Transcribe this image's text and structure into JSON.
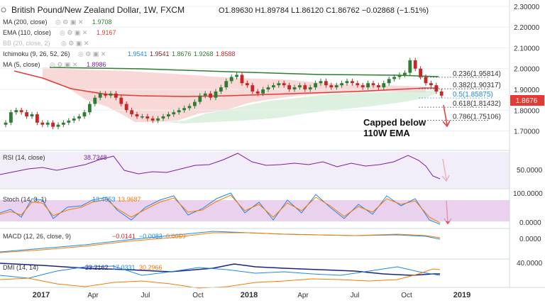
{
  "header": {
    "title": "British Pound/New Zealand Dollar, 1W, FXCM",
    "ohlc": "O1.89630  H1.89784  L1.86120  C1.86762  −0.02868 (−1.51%)"
  },
  "indicators": {
    "ma200": {
      "label": "MA (200, close)",
      "value": "1.9708",
      "color": "#2e7d32"
    },
    "ema110": {
      "label": "EMA (110, close)",
      "value": "1.9167",
      "color": "#e53935"
    },
    "bb": {
      "label": "BB (20, close, 2)",
      "value": ""
    },
    "ichimoku": {
      "label": "Ichimoku (9, 26, 52, 26)",
      "values": [
        "1.9541",
        "1.9541",
        "1.8676",
        "1.9268",
        "1.8588"
      ],
      "colors": [
        "#1e88e5",
        "#8e1b1b",
        "#2e7d32",
        "#2e7d32",
        "#c62828"
      ]
    },
    "ma5": {
      "label": "MA (5, close)",
      "value": "1.8986",
      "color": "#7b1fa2"
    }
  },
  "fib": {
    "levels": [
      {
        "label": "0.236(1.95814)",
        "price": 1.95814,
        "color": "#333333"
      },
      {
        "label": "0.382(1.90317)",
        "price": 1.90317,
        "color": "#333333"
      },
      {
        "label": "0.5(1.85875)",
        "price": 1.85875,
        "color": "#1e88e5"
      },
      {
        "label": "0.618(1.81432)",
        "price": 1.81432,
        "color": "#333333"
      },
      {
        "label": "0.786(1.75106)",
        "price": 1.75106,
        "color": "#333333"
      }
    ]
  },
  "annotation": {
    "line1": "Capped below",
    "line2": "110W EMA"
  },
  "price_badge": {
    "value": "1.8676",
    "color": "#e53935"
  },
  "panes": {
    "rsi": {
      "label": "RSI (14, close)",
      "value": "38.7348",
      "axis": [
        "50.0000"
      ]
    },
    "stoch": {
      "label": "Stoch (14, 3, 1)",
      "values": [
        "13.4553",
        "13.9687"
      ],
      "axis": [
        "100.0000",
        "0.0000"
      ]
    },
    "macd": {
      "label": "MACD (12, 26, close, 9)",
      "values": [
        "−0.0141",
        "−0.0083",
        "0.0059"
      ],
      "axis": [
        "0.0000"
      ]
    },
    "dmi": {
      "label": "DMI (14, 14)",
      "values": [
        "23.2162",
        "17.0331",
        "30.2966"
      ],
      "axis": [
        "40.0000"
      ]
    }
  },
  "xaxis": {
    "ticks": [
      "2017",
      "Apr",
      "Jul",
      "Oct",
      "2018",
      "Apr",
      "Jul",
      "Oct",
      "2019"
    ]
  },
  "chart_data": {
    "type": "candlestick",
    "title": "British Pound/New Zealand Dollar, 1W, FXCM",
    "y_ticks": [
      "2.30000",
      "2.20000",
      "2.10000",
      "2.00000",
      "1.90000",
      "1.80000",
      "1.70000"
    ],
    "ylim": [
      1.63,
      2.31
    ],
    "approx_close": [
      1.74,
      1.79,
      1.8,
      1.79,
      1.77,
      1.78,
      1.74,
      1.73,
      1.74,
      1.72,
      1.73,
      1.74,
      1.75,
      1.76,
      1.77,
      1.79,
      1.83,
      1.86,
      1.88,
      1.87,
      1.88,
      1.86,
      1.83,
      1.8,
      1.78,
      1.77,
      1.77,
      1.76,
      1.75,
      1.76,
      1.77,
      1.78,
      1.79,
      1.8,
      1.81,
      1.82,
      1.84,
      1.87,
      1.88,
      1.86,
      1.89,
      1.91,
      1.94,
      1.96,
      1.97,
      1.93,
      1.92,
      1.89,
      1.88,
      1.9,
      1.91,
      1.92,
      1.93,
      1.92,
      1.9,
      1.91,
      1.92,
      1.9,
      1.91,
      1.93,
      1.94,
      1.92,
      1.91,
      1.92,
      1.93,
      1.94,
      1.93,
      1.92,
      1.91,
      1.93,
      1.92,
      1.91,
      1.93,
      1.95,
      1.96,
      1.97,
      1.98,
      2.04,
      2.0,
      1.96,
      1.93,
      1.92,
      1.89,
      1.87
    ]
  }
}
